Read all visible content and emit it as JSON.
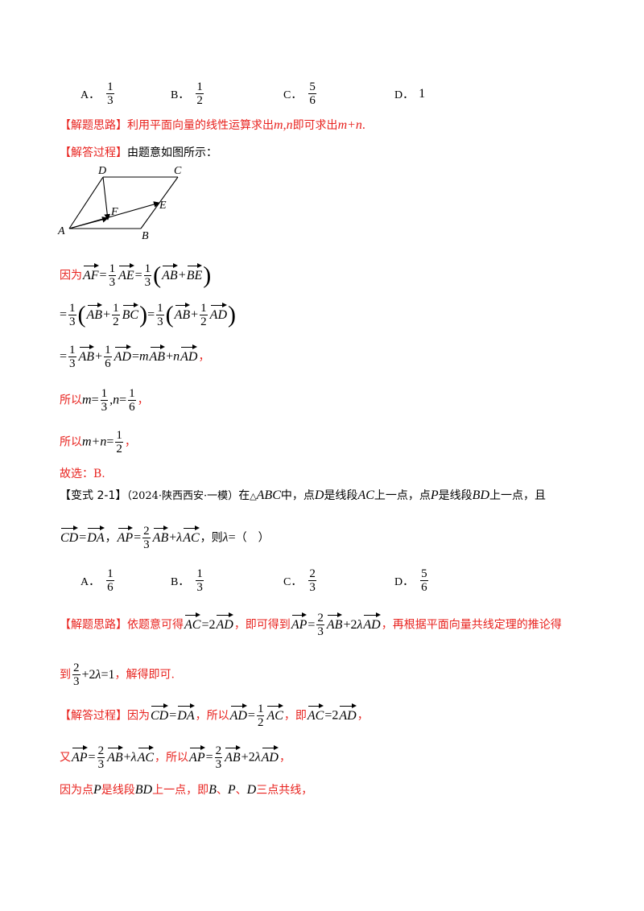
{
  "q1_options": [
    {
      "label": "A．",
      "num": "1",
      "den": "3"
    },
    {
      "label": "B．",
      "num": "1",
      "den": "2"
    },
    {
      "label": "C．",
      "num": "5",
      "den": "6"
    },
    {
      "label": "D．",
      "value": "1"
    }
  ],
  "hint1": {
    "tag": "【解题思路】",
    "text": "利用平面向量的线性运算求出",
    "mn": "m",
    "comma": ",",
    "n": "n",
    "text2": "即可求出",
    "expr": "m+n",
    "period": "."
  },
  "solution1": {
    "tag": "【解答过程】",
    "text": "由题意如图所示："
  },
  "figure": {
    "points": {
      "A": "A",
      "B": "B",
      "C": "C",
      "D": "D",
      "E": "E",
      "F": "F"
    }
  },
  "steps1": {
    "because": "因为",
    "AF": "AF",
    "eq": "=",
    "AE": "AE",
    "AB": "AB",
    "BE": "BE",
    "BC": "BC",
    "AD": "AD",
    "plus": "+",
    "one": "1",
    "three": "3",
    "two": "2",
    "six": "6",
    "m": "m",
    "n": "n",
    "comma_cn": "，",
    "so": "所以",
    "mcomma": ",",
    "mplusn": "m+n"
  },
  "answer1": "故选：B.",
  "variant": {
    "tag": "【变式 2-1】",
    "source": "（2024·陕西西安·一模）",
    "text_in": "在",
    "tri": "△",
    "ABC": "ABC",
    "text_mid": "中，点",
    "D": "D",
    "text_seg": "是线段",
    "AC": "AC",
    "text_pt": "上一点，点",
    "P": "P",
    "BD": "BD",
    "text_and": "上一点，且",
    "CD": "CD",
    "DA": "DA",
    "AP": "AP",
    "AB": "AB",
    "lambda": "λ",
    "then": "，则",
    "blank": "（　）"
  },
  "q2_options": [
    {
      "label": "A．",
      "num": "1",
      "den": "6"
    },
    {
      "label": "B．",
      "num": "1",
      "den": "3"
    },
    {
      "label": "C．",
      "num": "2",
      "den": "3"
    },
    {
      "label": "D．",
      "num": "5",
      "den": "6"
    }
  ],
  "hint2": {
    "tag": "【解题思路】",
    "t1": "依题意可得",
    "t2": "，即可得到",
    "t3": "，再根据平面向量共线定理的推论得",
    "t4": "到",
    "t5": "，解得即可."
  },
  "solution2": {
    "tag": "【解答过程】",
    "t1": "因为",
    "t2": "，所以",
    "t3": "，即",
    "t4": "又",
    "t5": "，所以",
    "t6": "因为点",
    "t7": "是线段",
    "t8": "上一点，即",
    "B": "B",
    "sep": "、",
    "t9": "三点共线，"
  }
}
